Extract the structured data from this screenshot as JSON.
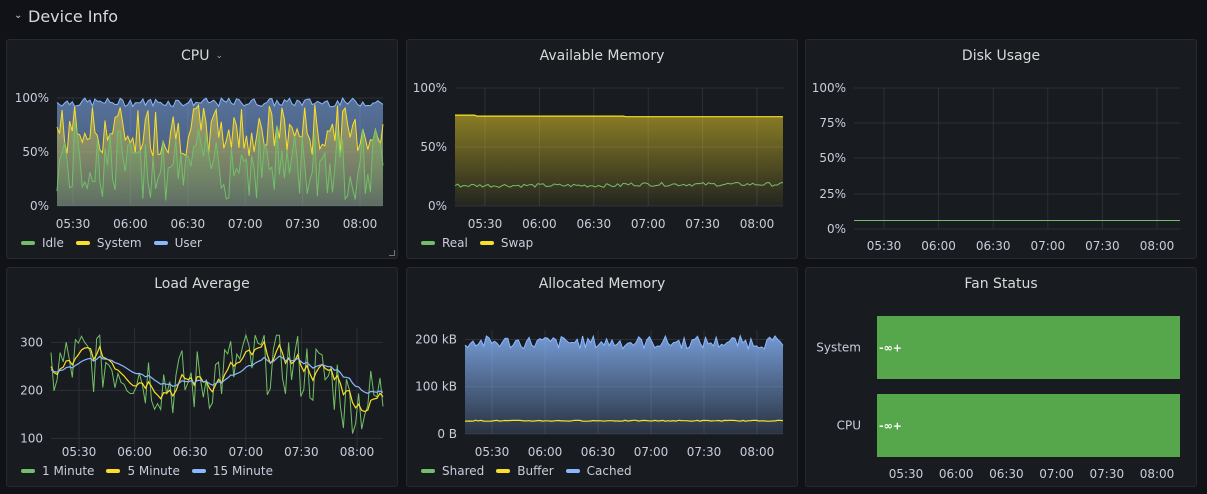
{
  "row": {
    "title": "Device Info",
    "icon": "chevron-down-icon"
  },
  "time_ticks": [
    "05:30",
    "06:00",
    "06:30",
    "07:00",
    "07:30",
    "08:00"
  ],
  "colors": {
    "green": "#73bf69",
    "yellow": "#fade2a",
    "blue": "#8ab8ff",
    "grid": "#2c3038",
    "fan_fill": "#56a64b"
  },
  "cpu": {
    "title": "CPU",
    "chart_data": {
      "type": "area",
      "ylim": [
        0,
        100
      ],
      "yticks": [
        "0%",
        "50%",
        "100%"
      ],
      "series": [
        {
          "name": "Idle",
          "color": "#73bf69"
        },
        {
          "name": "System",
          "color": "#fade2a"
        },
        {
          "name": "User",
          "color": "#8ab8ff"
        }
      ]
    }
  },
  "avail_mem": {
    "title": "Available Memory",
    "chart_data": {
      "type": "area",
      "ylim": [
        0,
        100
      ],
      "yticks": [
        "0%",
        "50%",
        "100%"
      ],
      "series": [
        {
          "name": "Real",
          "color": "#73bf69",
          "approx_level": 17
        },
        {
          "name": "Swap",
          "color": "#fade2a",
          "approx_level": 76
        }
      ]
    }
  },
  "disk": {
    "title": "Disk Usage",
    "chart_data": {
      "type": "line",
      "ylim": [
        0,
        100
      ],
      "yticks": [
        "0%",
        "25%",
        "50%",
        "75%",
        "100%"
      ],
      "series": [
        {
          "name": "",
          "color": "#73bf69",
          "approx_level": 6
        }
      ]
    }
  },
  "load": {
    "title": "Load Average",
    "chart_data": {
      "type": "line",
      "ylim": [
        80,
        330
      ],
      "yticks": [
        "100",
        "200",
        "300"
      ],
      "series": [
        {
          "name": "1 Minute",
          "color": "#73bf69"
        },
        {
          "name": "5 Minute",
          "color": "#fade2a"
        },
        {
          "name": "15 Minute",
          "color": "#8ab8ff"
        }
      ]
    }
  },
  "alloc_mem": {
    "title": "Allocated Memory",
    "chart_data": {
      "type": "area",
      "ylim": [
        0,
        220
      ],
      "yticks": [
        "0 B",
        "100 kB",
        "200 kB"
      ],
      "series": [
        {
          "name": "Shared",
          "color": "#73bf69"
        },
        {
          "name": "Buffer",
          "color": "#fade2a",
          "approx_level": 28
        },
        {
          "name": "Cached",
          "color": "#8ab8ff",
          "approx_level": 190
        }
      ]
    }
  },
  "fan": {
    "title": "Fan Status",
    "chart_data": {
      "type": "bar",
      "categories": [
        "System",
        "CPU"
      ],
      "value_labels": [
        "-∞+",
        "-∞+"
      ]
    }
  }
}
